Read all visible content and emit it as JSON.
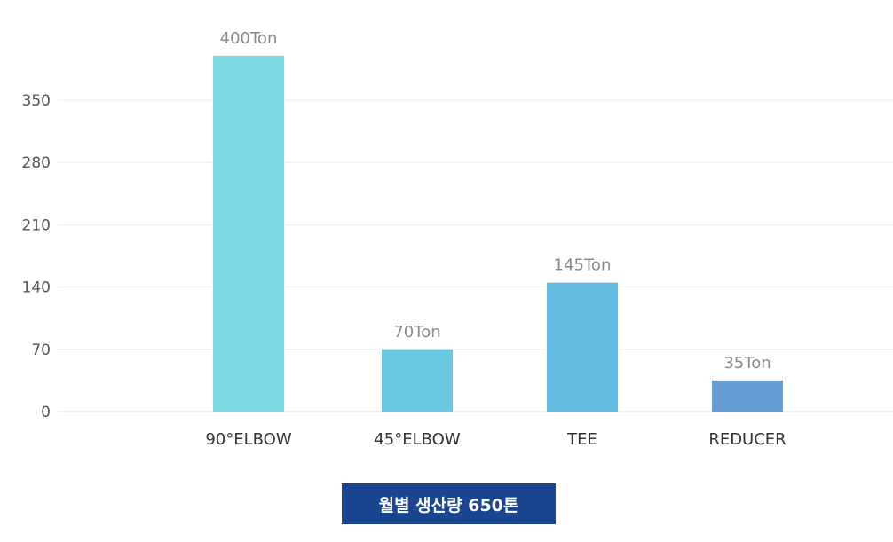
{
  "chart_data": {
    "type": "bar",
    "categories": [
      "90°ELBOW",
      "45°ELBOW",
      "TEE",
      "REDUCER"
    ],
    "values": [
      400,
      70,
      145,
      35
    ],
    "data_labels": [
      "400Ton",
      "70Ton",
      "145Ton",
      "35Ton"
    ],
    "yticks": [
      0,
      70,
      140,
      210,
      280,
      350
    ],
    "ylim": [
      0,
      420
    ],
    "grid": true,
    "bar_colors": [
      "#7ad9e0",
      "#6ac8e0",
      "#62bbe0",
      "#659fd3"
    ]
  },
  "summary": {
    "text": "월별 생산량 650톤",
    "background": "#1a4690"
  }
}
